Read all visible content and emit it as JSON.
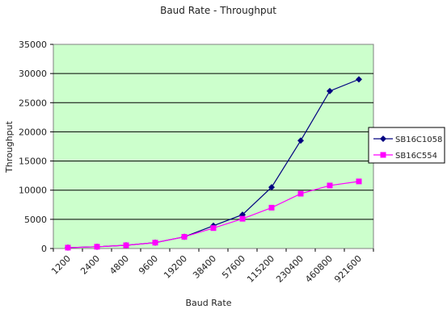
{
  "chart_data": {
    "type": "line",
    "title": "Baud Rate - Throughput",
    "xlabel": "Baud Rate",
    "ylabel": "Throughput",
    "categories": [
      "1200",
      "2400",
      "4800",
      "9600",
      "19200",
      "38400",
      "57600",
      "115200",
      "230400",
      "460800",
      "921600"
    ],
    "ylim": [
      0,
      35000
    ],
    "yticks": [
      "0",
      "5000",
      "10000",
      "15000",
      "20000",
      "25000",
      "30000",
      "35000"
    ],
    "grid": "horizontal",
    "legend_position": "right",
    "plot_background": "#ccffcc",
    "series": [
      {
        "name": "SB16C1058",
        "color": "#000080",
        "marker": "diamond",
        "values": [
          150,
          300,
          550,
          1000,
          2000,
          3900,
          5800,
          10500,
          18500,
          27000,
          29000
        ]
      },
      {
        "name": "SB16C554",
        "color": "#ff00ff",
        "marker": "square",
        "values": [
          150,
          300,
          550,
          1000,
          2000,
          3500,
          5100,
          7000,
          9400,
          10800,
          11500
        ]
      }
    ]
  }
}
